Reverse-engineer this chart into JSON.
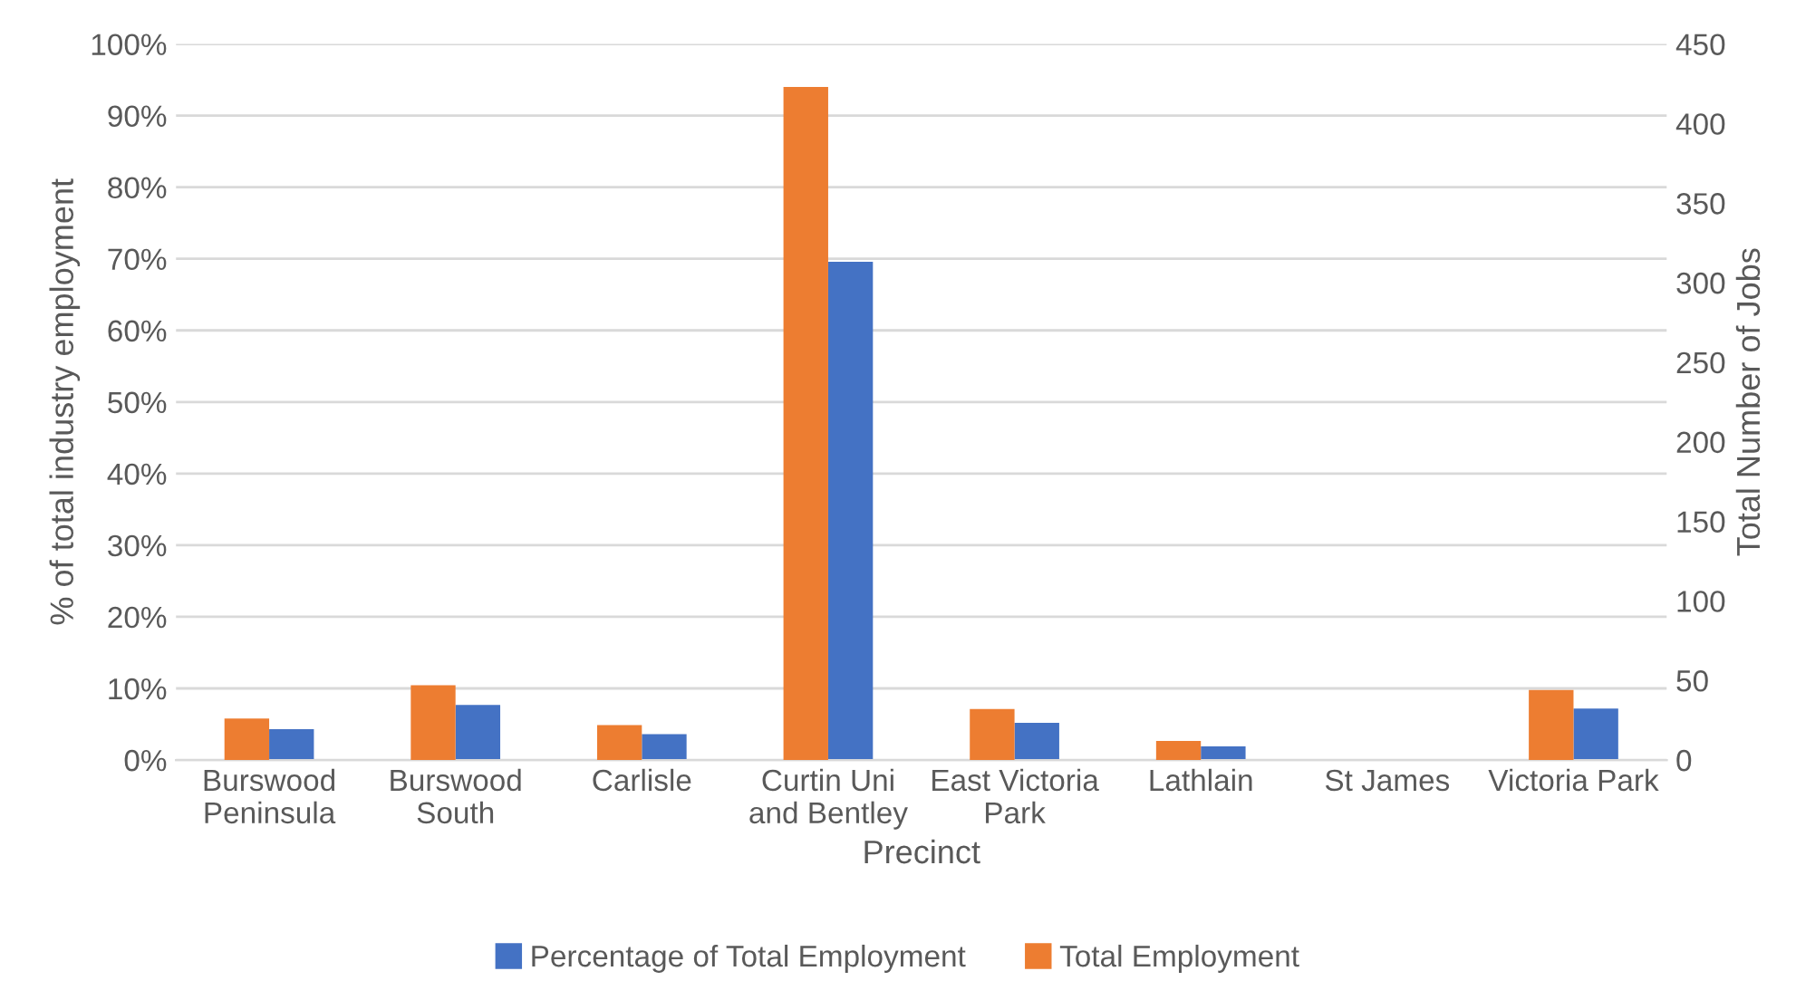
{
  "chart_data": {
    "type": "bar",
    "xlabel": "Precinct",
    "ylabel": "% of total industry employment",
    "y2label": "Total Number of Jobs",
    "categories": [
      "Burswood\nPeninsula",
      "Burswood\nSouth",
      "Carlisle",
      "Curtin Uni\nand Bentley",
      "East Victoria\nPark",
      "Lathlain",
      "St James",
      "Victoria Park"
    ],
    "series": [
      {
        "name": "Total Employment",
        "color": "#ed7d31",
        "axis": "y2",
        "values": [
          26,
          47,
          22,
          423,
          32,
          12,
          0,
          44
        ]
      },
      {
        "name": "Percentage of Total Employment",
        "color": "#4472c4",
        "values": [
          4.3,
          7.7,
          3.6,
          69.6,
          5.2,
          1.9,
          0,
          7.2
        ]
      }
    ],
    "ylim": [
      0,
      100
    ],
    "yticks": [
      {
        "value": 0,
        "label": "0%"
      },
      {
        "value": 10,
        "label": "10%"
      },
      {
        "value": 20,
        "label": "20%"
      },
      {
        "value": 30,
        "label": "30%"
      },
      {
        "value": 40,
        "label": "40%"
      },
      {
        "value": 50,
        "label": "50%"
      },
      {
        "value": 60,
        "label": "60%"
      },
      {
        "value": 70,
        "label": "70%"
      },
      {
        "value": 80,
        "label": "80%"
      },
      {
        "value": 90,
        "label": "90%"
      },
      {
        "value": 100,
        "label": "100%"
      }
    ],
    "y2lim": [
      0,
      450
    ],
    "y2ticks": [
      0,
      50,
      100,
      150,
      200,
      250,
      300,
      350,
      400,
      450
    ],
    "grid": "y",
    "legend": "bottom"
  }
}
